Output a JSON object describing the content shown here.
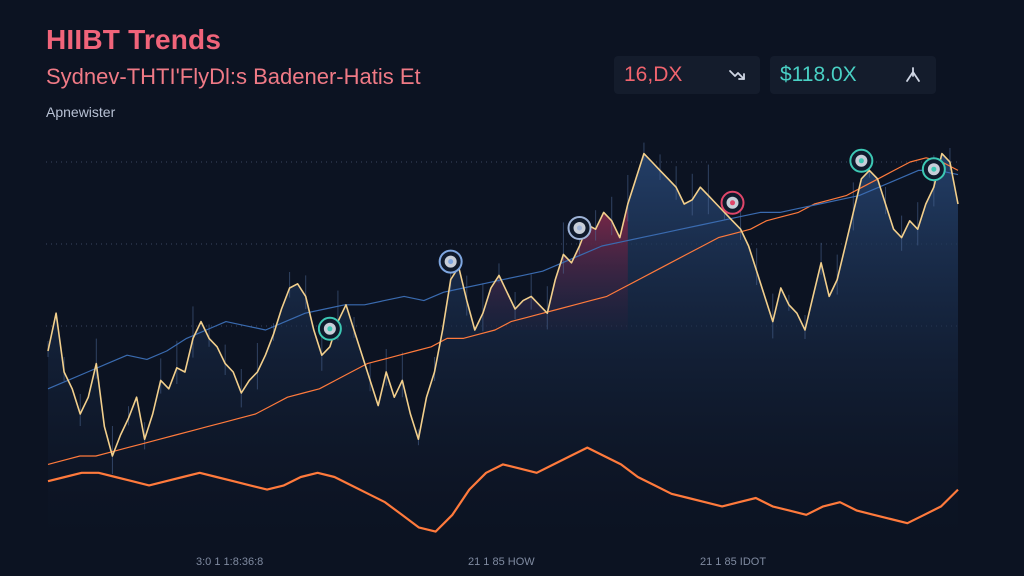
{
  "header": {
    "title": "HIIBT Trends",
    "subtitle": "Sydnev-THTI'FlyDl:s Badener-Hatis Et",
    "source": "Apnewister"
  },
  "stats": [
    {
      "value": "16,DX",
      "icon": "trend-down-arrow-icon",
      "color": "#f0646e"
    },
    {
      "value": "$118.0X",
      "icon": "trend-up-arrow-icon",
      "color": "#49d0c4"
    }
  ],
  "colors": {
    "background": "#0c1322",
    "price_line": "#f2cf8c",
    "orange_line": "#ff7a3c",
    "blue_line": "#3a6bb0",
    "red_fill": "#7a1f3c",
    "area_fill": "#1d3358"
  },
  "chart_data": {
    "type": "line",
    "title": "HIIBT Trends",
    "subtitle": "Sydnev-THTI'FlyDl:s Badener-Hatis Et",
    "x_tick_labels": [
      "3:0 1 1:8:36:8",
      "21 1 85 HOW",
      "21 1 85 IDOT"
    ],
    "ylim": [
      0,
      100
    ],
    "grid": false,
    "series": [
      {
        "values": [
          45,
          54,
          40,
          36,
          30,
          34,
          42,
          27,
          20,
          25,
          29,
          34,
          24,
          30,
          38,
          36,
          41,
          40,
          48,
          52,
          48,
          46,
          42,
          40,
          35,
          38,
          40,
          44,
          49,
          55,
          60,
          61,
          58,
          50,
          44,
          46,
          52,
          56,
          50,
          44,
          38,
          32,
          40,
          34,
          38,
          30,
          24,
          34,
          40,
          50,
          62,
          65,
          57,
          50,
          54,
          60,
          63,
          59,
          55,
          57,
          58,
          56,
          54,
          62,
          68,
          66,
          70,
          75,
          74,
          78,
          76,
          72,
          80,
          86,
          92,
          90,
          88,
          86,
          84,
          80,
          81,
          84,
          82,
          80,
          78,
          76,
          74,
          70,
          64,
          58,
          52,
          60,
          56,
          54,
          50,
          58,
          66,
          58,
          62,
          70,
          78,
          86,
          88,
          86,
          80,
          74,
          72,
          76,
          74,
          80,
          84,
          92,
          90,
          80
        ]
      },
      {
        "values": [
          18,
          19,
          20,
          20,
          21,
          22,
          23,
          24,
          25,
          26,
          27,
          28,
          29,
          30,
          32,
          34,
          35,
          36,
          38,
          40,
          42,
          43,
          44,
          45,
          46,
          48,
          48,
          49,
          50,
          52,
          53,
          54,
          55,
          56,
          57,
          58,
          60,
          62,
          64,
          66,
          68,
          70,
          72,
          73,
          74,
          76,
          77,
          78,
          80,
          81,
          82,
          84,
          86,
          88,
          90,
          91,
          90,
          88
        ]
      },
      {
        "values": [
          36,
          38,
          40,
          42,
          44,
          43,
          45,
          48,
          50,
          52,
          51,
          50,
          52,
          54,
          55,
          56,
          56,
          57,
          58,
          57,
          59,
          60,
          61,
          62,
          63,
          64,
          66,
          68,
          70,
          71,
          72,
          73,
          74,
          75,
          76,
          77,
          78,
          78,
          79,
          80,
          81,
          82,
          84,
          86,
          88,
          88,
          87
        ]
      },
      {
        "values": [
          14,
          15,
          16,
          16,
          15,
          14,
          13,
          14,
          15,
          16,
          15,
          14,
          13,
          12,
          13,
          15,
          16,
          15,
          13,
          11,
          9,
          6,
          3,
          2,
          6,
          12,
          16,
          18,
          17,
          16,
          18,
          20,
          22,
          20,
          18,
          15,
          13,
          11,
          10,
          9,
          8,
          9,
          10,
          8,
          7,
          6,
          8,
          9,
          7,
          6,
          5,
          4,
          6,
          8,
          12
        ]
      }
    ],
    "markers": [
      {
        "x_index": 35
      },
      {
        "x_index": 50
      },
      {
        "x_index": 66
      },
      {
        "x_index": 85
      },
      {
        "x_index": 101
      },
      {
        "x_index": 110
      }
    ]
  }
}
